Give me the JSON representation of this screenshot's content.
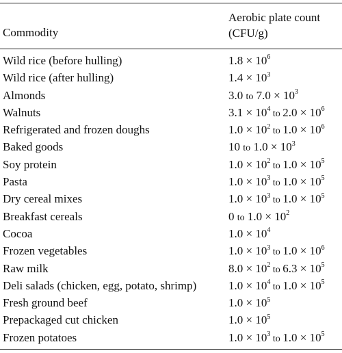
{
  "table": {
    "header": {
      "commodity": "Commodity",
      "count_line1": "Aerobic plate count",
      "count_line2": "(CFU/g)"
    },
    "rows": [
      {
        "commodity": "Wild rice (before hulling)",
        "count": [
          [
            "m",
            "1.8 × 10"
          ],
          [
            "e",
            "6"
          ]
        ]
      },
      {
        "commodity": "Wild rice (after hulling)",
        "count": [
          [
            "m",
            "1.4 × 10"
          ],
          [
            "e",
            "3"
          ]
        ]
      },
      {
        "commodity": "Almonds",
        "count": [
          [
            "m",
            "3.0 "
          ],
          [
            "s",
            "to"
          ],
          [
            "m",
            " 7.0 × 10"
          ],
          [
            "e",
            "3"
          ]
        ]
      },
      {
        "commodity": "Walnuts",
        "count": [
          [
            "m",
            "3.1 × 10"
          ],
          [
            "e",
            "4"
          ],
          [
            "s",
            " to "
          ],
          [
            "m",
            "2.0 × 10"
          ],
          [
            "e",
            "6"
          ]
        ]
      },
      {
        "commodity": "Refrigerated and frozen doughs",
        "count": [
          [
            "m",
            "1.0 × 10"
          ],
          [
            "e",
            "2"
          ],
          [
            "s",
            " to "
          ],
          [
            "m",
            "1.0 × 10"
          ],
          [
            "e",
            "6"
          ]
        ]
      },
      {
        "commodity": "Baked goods",
        "count": [
          [
            "m",
            "10 "
          ],
          [
            "s",
            "to"
          ],
          [
            "m",
            " 1.0 × 10"
          ],
          [
            "e",
            "3"
          ]
        ]
      },
      {
        "commodity": "Soy protein",
        "count": [
          [
            "m",
            "1.0 × 10"
          ],
          [
            "e",
            "2"
          ],
          [
            "s",
            " to "
          ],
          [
            "m",
            "1.0 × 10"
          ],
          [
            "e",
            "5"
          ]
        ]
      },
      {
        "commodity": "Pasta",
        "count": [
          [
            "m",
            "1.0 × 10"
          ],
          [
            "e",
            "3"
          ],
          [
            "s",
            " to "
          ],
          [
            "m",
            "1.0 × 10"
          ],
          [
            "e",
            "5"
          ]
        ]
      },
      {
        "commodity": "Dry cereal mixes",
        "count": [
          [
            "m",
            "1.0 × 10"
          ],
          [
            "e",
            "3"
          ],
          [
            "s",
            " to "
          ],
          [
            "m",
            "1.0 × 10"
          ],
          [
            "e",
            "5"
          ]
        ]
      },
      {
        "commodity": "Breakfast cereals",
        "count": [
          [
            "m",
            "0 "
          ],
          [
            "s",
            "to"
          ],
          [
            "m",
            " 1.0 × 10"
          ],
          [
            "e",
            "2"
          ]
        ]
      },
      {
        "commodity": "Cocoa",
        "count": [
          [
            "m",
            "1.0 × 10"
          ],
          [
            "e",
            "4"
          ]
        ]
      },
      {
        "commodity": "Frozen vegetables",
        "count": [
          [
            "m",
            "1.0 × 10"
          ],
          [
            "e",
            "3"
          ],
          [
            "s",
            " to "
          ],
          [
            "m",
            "1.0 × 10"
          ],
          [
            "e",
            "6"
          ]
        ]
      },
      {
        "commodity": "Raw milk",
        "count": [
          [
            "m",
            "8.0 × 10"
          ],
          [
            "e",
            "2"
          ],
          [
            "s",
            " to "
          ],
          [
            "m",
            "6.3 × 10"
          ],
          [
            "e",
            "5"
          ]
        ]
      },
      {
        "commodity": "Deli salads (chicken, egg, potato, shrimp)",
        "count": [
          [
            "m",
            "1.0 × 10"
          ],
          [
            "e",
            "4"
          ],
          [
            "s",
            " to "
          ],
          [
            "m",
            "1.0 × 10"
          ],
          [
            "e",
            "5"
          ]
        ]
      },
      {
        "commodity": "Fresh ground beef",
        "count": [
          [
            "m",
            "1.0 × 10"
          ],
          [
            "e",
            "5"
          ]
        ]
      },
      {
        "commodity": "Prepackaged cut chicken",
        "count": [
          [
            "m",
            "1.0 × 10"
          ],
          [
            "e",
            "5"
          ]
        ]
      },
      {
        "commodity": "Frozen potatoes",
        "count": [
          [
            "m",
            "1.0 × 10"
          ],
          [
            "e",
            "3"
          ],
          [
            "s",
            " to "
          ],
          [
            "m",
            "1.0 × 10"
          ],
          [
            "e",
            "5"
          ]
        ]
      }
    ]
  }
}
